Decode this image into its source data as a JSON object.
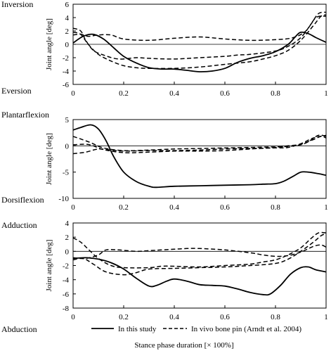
{
  "chart_data": [
    {
      "type": "line",
      "ylabel": "Joint angle [deg]",
      "label_top": "Inversion",
      "label_bottom": "Eversion",
      "xlim": [
        0,
        1
      ],
      "ylim": [
        -6,
        6
      ],
      "x_ticks": [
        "0",
        "0.2",
        "0.4",
        "0.6",
        "0.8",
        "1"
      ],
      "y_ticks": [
        "-6",
        "-4",
        "-2",
        "0",
        "2",
        "4",
        "6"
      ],
      "y_tick_values": [
        -6,
        -4,
        -2,
        0,
        2,
        4,
        6
      ],
      "series": [
        {
          "style": "solid",
          "points": [
            [
              0,
              0.2
            ],
            [
              0.04,
              1.2
            ],
            [
              0.08,
              1.5
            ],
            [
              0.12,
              0.8
            ],
            [
              0.16,
              -0.5
            ],
            [
              0.2,
              -1.8
            ],
            [
              0.25,
              -2.8
            ],
            [
              0.3,
              -3.5
            ],
            [
              0.35,
              -3.7
            ],
            [
              0.4,
              -3.7
            ],
            [
              0.45,
              -3.9
            ],
            [
              0.5,
              -4.1
            ],
            [
              0.55,
              -4.0
            ],
            [
              0.6,
              -3.6
            ],
            [
              0.65,
              -2.7
            ],
            [
              0.7,
              -2.1
            ],
            [
              0.75,
              -1.7
            ],
            [
              0.8,
              -1.1
            ],
            [
              0.85,
              0.0
            ],
            [
              0.88,
              1.2
            ],
            [
              0.9,
              1.8
            ],
            [
              0.93,
              1.6
            ],
            [
              0.96,
              1.0
            ],
            [
              1.0,
              0.3
            ]
          ]
        },
        {
          "style": "dashed",
          "points": [
            [
              0,
              1.4
            ],
            [
              0.03,
              1.5
            ],
            [
              0.06,
              1.2
            ],
            [
              0.1,
              1.4
            ],
            [
              0.15,
              1.4
            ],
            [
              0.2,
              0.8
            ],
            [
              0.3,
              0.6
            ],
            [
              0.4,
              0.9
            ],
            [
              0.5,
              1.1
            ],
            [
              0.6,
              0.8
            ],
            [
              0.7,
              0.6
            ],
            [
              0.8,
              0.7
            ],
            [
              0.87,
              1.0
            ],
            [
              0.92,
              2.0
            ],
            [
              0.96,
              4.0
            ],
            [
              1.0,
              4.2
            ]
          ]
        },
        {
          "style": "dashed",
          "points": [
            [
              0,
              2.4
            ],
            [
              0.03,
              2.0
            ],
            [
              0.05,
              0.6
            ],
            [
              0.08,
              -0.9
            ],
            [
              0.12,
              -1.6
            ],
            [
              0.18,
              -2.2
            ],
            [
              0.25,
              -2.0
            ],
            [
              0.3,
              -2.1
            ],
            [
              0.4,
              -2.2
            ],
            [
              0.5,
              -2.0
            ],
            [
              0.6,
              -1.8
            ],
            [
              0.65,
              -1.6
            ],
            [
              0.7,
              -1.5
            ],
            [
              0.8,
              -1.0
            ],
            [
              0.85,
              -0.3
            ],
            [
              0.9,
              1.0
            ],
            [
              0.94,
              3.0
            ],
            [
              0.97,
              4.6
            ],
            [
              1.0,
              4.8
            ]
          ]
        },
        {
          "style": "dashed",
          "points": [
            [
              0,
              1.8
            ],
            [
              0.03,
              1.5
            ],
            [
              0.06,
              0.0
            ],
            [
              0.1,
              -1.5
            ],
            [
              0.15,
              -2.5
            ],
            [
              0.2,
              -3.2
            ],
            [
              0.25,
              -3.5
            ],
            [
              0.3,
              -3.6
            ],
            [
              0.4,
              -3.6
            ],
            [
              0.5,
              -3.4
            ],
            [
              0.6,
              -3.0
            ],
            [
              0.7,
              -2.6
            ],
            [
              0.75,
              -2.2
            ],
            [
              0.8,
              -1.7
            ],
            [
              0.85,
              -0.9
            ],
            [
              0.9,
              0.6
            ],
            [
              0.95,
              2.8
            ],
            [
              0.98,
              4.2
            ],
            [
              1.0,
              4.4
            ]
          ]
        }
      ]
    },
    {
      "type": "line",
      "ylabel": "Joint angle [deg]",
      "label_top": "Plantarflexion",
      "label_bottom": "Dorsiflexion",
      "xlim": [
        0,
        1
      ],
      "ylim": [
        -10,
        5
      ],
      "x_ticks": [
        "0",
        "0.2",
        "0.4",
        "0.6",
        "0.8",
        "1"
      ],
      "y_ticks": [
        "-10",
        "-5",
        "0",
        "5"
      ],
      "y_tick_values": [
        -10,
        -5,
        0,
        5
      ],
      "series": [
        {
          "style": "solid",
          "points": [
            [
              0,
              3.0
            ],
            [
              0.03,
              3.5
            ],
            [
              0.07,
              4.0
            ],
            [
              0.1,
              3.2
            ],
            [
              0.13,
              1.0
            ],
            [
              0.16,
              -2.0
            ],
            [
              0.2,
              -5.0
            ],
            [
              0.25,
              -6.8
            ],
            [
              0.3,
              -7.7
            ],
            [
              0.33,
              -7.9
            ],
            [
              0.4,
              -7.7
            ],
            [
              0.5,
              -7.6
            ],
            [
              0.6,
              -7.5
            ],
            [
              0.7,
              -7.4
            ],
            [
              0.75,
              -7.3
            ],
            [
              0.8,
              -7.2
            ],
            [
              0.83,
              -6.8
            ],
            [
              0.87,
              -5.8
            ],
            [
              0.9,
              -5.0
            ],
            [
              0.93,
              -5.0
            ],
            [
              0.97,
              -5.3
            ],
            [
              1.0,
              -5.6
            ]
          ]
        },
        {
          "style": "dashed",
          "points": [
            [
              0,
              0.2
            ],
            [
              0.05,
              0.3
            ],
            [
              0.08,
              0.0
            ],
            [
              0.12,
              -0.7
            ],
            [
              0.2,
              -1.3
            ],
            [
              0.3,
              -1.2
            ],
            [
              0.4,
              -1.0
            ],
            [
              0.5,
              -1.0
            ],
            [
              0.6,
              -0.9
            ],
            [
              0.7,
              -0.6
            ],
            [
              0.8,
              -0.3
            ],
            [
              0.85,
              0.0
            ],
            [
              0.9,
              0.3
            ],
            [
              0.95,
              1.2
            ],
            [
              0.98,
              1.8
            ],
            [
              1.0,
              1.5
            ]
          ]
        },
        {
          "style": "dashed",
          "points": [
            [
              0,
              -1.5
            ],
            [
              0.05,
              -1.2
            ],
            [
              0.1,
              -0.6
            ],
            [
              0.15,
              -0.8
            ],
            [
              0.2,
              -1.0
            ],
            [
              0.3,
              -0.9
            ],
            [
              0.4,
              -0.9
            ],
            [
              0.5,
              -0.8
            ],
            [
              0.6,
              -0.6
            ],
            [
              0.7,
              -0.5
            ],
            [
              0.8,
              -0.4
            ],
            [
              0.85,
              -0.3
            ],
            [
              0.9,
              0.4
            ],
            [
              0.95,
              1.5
            ],
            [
              1.0,
              2.0
            ]
          ]
        },
        {
          "style": "dashed",
          "points": [
            [
              0,
              1.8
            ],
            [
              0.03,
              1.3
            ],
            [
              0.07,
              0.6
            ],
            [
              0.12,
              -0.4
            ],
            [
              0.2,
              -0.9
            ],
            [
              0.3,
              -0.8
            ],
            [
              0.4,
              -0.6
            ],
            [
              0.5,
              -0.5
            ],
            [
              0.6,
              -0.4
            ],
            [
              0.7,
              -0.3
            ],
            [
              0.8,
              -0.2
            ],
            [
              0.85,
              -0.1
            ],
            [
              0.9,
              0.2
            ],
            [
              0.93,
              0.8
            ],
            [
              0.97,
              2.0
            ],
            [
              1.0,
              1.8
            ]
          ]
        }
      ]
    },
    {
      "type": "line",
      "ylabel": "Joint angle [deg]",
      "label_top": "Adduction",
      "label_bottom": "Abduction",
      "xlim": [
        0,
        1
      ],
      "ylim": [
        -8,
        4
      ],
      "x_ticks": [
        "0",
        "0.2",
        "0.4",
        "0.6",
        "0.8",
        "1"
      ],
      "y_ticks": [
        "-8",
        "-6",
        "-4",
        "-2",
        "0",
        "2",
        "4"
      ],
      "y_tick_values": [
        -8,
        -6,
        -4,
        -2,
        0,
        2,
        4
      ],
      "series": [
        {
          "style": "solid",
          "points": [
            [
              0,
              -1.0
            ],
            [
              0.05,
              -0.9
            ],
            [
              0.1,
              -1.1
            ],
            [
              0.15,
              -1.6
            ],
            [
              0.2,
              -2.5
            ],
            [
              0.25,
              -3.8
            ],
            [
              0.3,
              -4.9
            ],
            [
              0.33,
              -4.8
            ],
            [
              0.37,
              -4.2
            ],
            [
              0.4,
              -3.9
            ],
            [
              0.45,
              -4.2
            ],
            [
              0.5,
              -4.7
            ],
            [
              0.55,
              -4.8
            ],
            [
              0.6,
              -4.9
            ],
            [
              0.65,
              -5.3
            ],
            [
              0.7,
              -5.8
            ],
            [
              0.75,
              -6.1
            ],
            [
              0.78,
              -6.0
            ],
            [
              0.82,
              -4.8
            ],
            [
              0.86,
              -3.2
            ],
            [
              0.9,
              -2.3
            ],
            [
              0.93,
              -2.2
            ],
            [
              0.96,
              -2.6
            ],
            [
              1.0,
              -2.9
            ]
          ]
        },
        {
          "style": "dashed",
          "points": [
            [
              0,
              -0.9
            ],
            [
              0.05,
              -1.0
            ],
            [
              0.1,
              -0.5
            ],
            [
              0.13,
              0.2
            ],
            [
              0.18,
              0.2
            ],
            [
              0.25,
              0.0
            ],
            [
              0.3,
              0.1
            ],
            [
              0.4,
              0.3
            ],
            [
              0.45,
              0.4
            ],
            [
              0.5,
              0.4
            ],
            [
              0.6,
              0.2
            ],
            [
              0.7,
              -0.2
            ],
            [
              0.75,
              -0.5
            ],
            [
              0.8,
              -0.7
            ],
            [
              0.85,
              -0.6
            ],
            [
              0.9,
              -0.1
            ],
            [
              0.95,
              0.7
            ],
            [
              0.98,
              0.9
            ],
            [
              1.0,
              0.6
            ]
          ]
        },
        {
          "style": "dashed",
          "points": [
            [
              0,
              1.9
            ],
            [
              0.03,
              1.3
            ],
            [
              0.06,
              0.3
            ],
            [
              0.1,
              -1.0
            ],
            [
              0.15,
              -2.0
            ],
            [
              0.2,
              -2.3
            ],
            [
              0.3,
              -2.3
            ],
            [
              0.35,
              -2.1
            ],
            [
              0.4,
              -2.1
            ],
            [
              0.5,
              -2.2
            ],
            [
              0.6,
              -2.0
            ],
            [
              0.7,
              -1.8
            ],
            [
              0.75,
              -1.5
            ],
            [
              0.8,
              -1.2
            ],
            [
              0.85,
              -0.5
            ],
            [
              0.9,
              0.5
            ],
            [
              0.94,
              1.8
            ],
            [
              0.97,
              2.6
            ],
            [
              1.0,
              2.6
            ]
          ]
        },
        {
          "style": "dashed",
          "points": [
            [
              0,
              -1.2
            ],
            [
              0.04,
              -1.0
            ],
            [
              0.08,
              -1.8
            ],
            [
              0.13,
              -2.9
            ],
            [
              0.2,
              -3.3
            ],
            [
              0.25,
              -3.0
            ],
            [
              0.3,
              -2.5
            ],
            [
              0.4,
              -2.4
            ],
            [
              0.5,
              -2.3
            ],
            [
              0.6,
              -2.2
            ],
            [
              0.7,
              -2.0
            ],
            [
              0.8,
              -1.7
            ],
            [
              0.85,
              -1.1
            ],
            [
              0.9,
              0.0
            ],
            [
              0.95,
              1.3
            ],
            [
              0.98,
              2.2
            ],
            [
              1.0,
              2.5
            ]
          ]
        }
      ]
    }
  ],
  "legend": {
    "solid_label": "In this study",
    "dashed_label": "In vivo bone pin (Arndt et al. 2004)"
  },
  "xlabel": "Stance phase duration [× 100%]"
}
